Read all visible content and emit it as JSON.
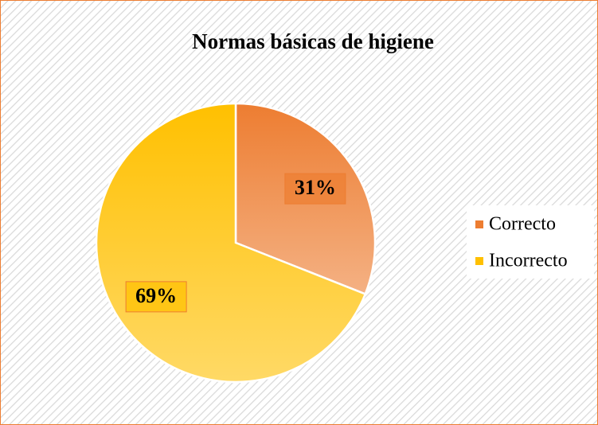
{
  "chart_data": {
    "type": "pie",
    "title": "Normas básicas de higiene",
    "categories": [
      "Correcto",
      "Incorrecto"
    ],
    "values": [
      31,
      69
    ],
    "value_labels": [
      "31%",
      "69%"
    ],
    "colors": [
      "#ED7D31",
      "#FFC000"
    ],
    "legend": "right"
  }
}
